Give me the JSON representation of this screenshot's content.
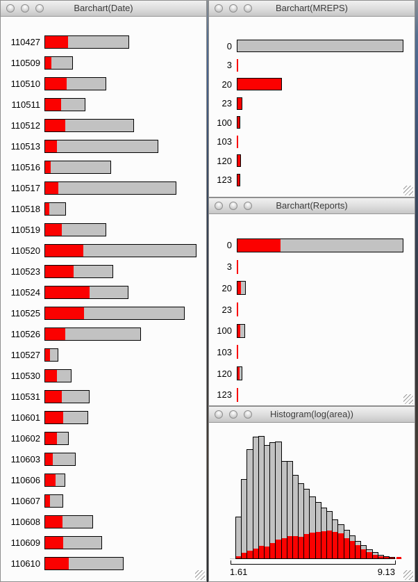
{
  "colors": {
    "selected_red": "#fb0100",
    "bar_gray": "#c2c2c2",
    "bar_border": "#000000"
  },
  "windows": [
    {
      "id": "date",
      "title": "Barchart(Date)"
    },
    {
      "id": "mreps",
      "title": "Barchart(MREPS)"
    },
    {
      "id": "reports",
      "title": "Barchart(Reports)"
    },
    {
      "id": "hist",
      "title": "Histogram(log(area))",
      "axis": {
        "min_label": "1.61",
        "max_label": "9.13"
      }
    }
  ],
  "chart_data": [
    {
      "type": "bar",
      "window": "date",
      "title": "Barchart(Date)",
      "orientation": "horizontal",
      "unit": "screen px (bar length ~ count)",
      "categories": [
        "110427",
        "110509",
        "110510",
        "110511",
        "110512",
        "110513",
        "110516",
        "110517",
        "110518",
        "110519",
        "110520",
        "110523",
        "110524",
        "110525",
        "110526",
        "110527",
        "110530",
        "110531",
        "110601",
        "110602",
        "110603",
        "110606",
        "110607",
        "110608",
        "110609",
        "110610"
      ],
      "series": [
        {
          "name": "total",
          "values": [
            122,
            41,
            89,
            59,
            129,
            164,
            96,
            190,
            31,
            89,
            219,
            99,
            121,
            202,
            139,
            20,
            39,
            65,
            63,
            35,
            45,
            30,
            27,
            70,
            83,
            114
          ]
        },
        {
          "name": "selected",
          "values": [
            33,
            9,
            31,
            23,
            29,
            17,
            8,
            19,
            6,
            24,
            55,
            41,
            64,
            56,
            29,
            7,
            17,
            24,
            26,
            17,
            11,
            15,
            7,
            25,
            26,
            34
          ]
        }
      ]
    },
    {
      "type": "bar",
      "window": "mreps",
      "title": "Barchart(MREPS)",
      "orientation": "horizontal",
      "unit": "screen px (bar length ~ count)",
      "categories": [
        "0",
        "3",
        "20",
        "23",
        "100",
        "103",
        "120",
        "123"
      ],
      "series": [
        {
          "name": "total",
          "values": [
            240,
            2,
            65,
            8,
            5,
            2,
            6,
            5
          ]
        },
        {
          "name": "selected",
          "values": [
            0,
            2,
            65,
            8,
            5,
            2,
            6,
            5
          ]
        }
      ],
      "bordered": [
        true,
        false,
        true,
        true,
        true,
        false,
        true,
        true
      ]
    },
    {
      "type": "bar",
      "window": "reports",
      "title": "Barchart(Reports)",
      "orientation": "horizontal",
      "unit": "screen px (bar length ~ count)",
      "categories": [
        "0",
        "3",
        "20",
        "23",
        "100",
        "103",
        "120",
        "123"
      ],
      "series": [
        {
          "name": "total",
          "values": [
            240,
            2,
            13,
            2,
            12,
            2,
            8,
            2
          ]
        },
        {
          "name": "selected",
          "values": [
            62,
            2,
            5,
            2,
            4,
            2,
            3,
            2
          ]
        }
      ],
      "bordered": [
        true,
        false,
        true,
        false,
        true,
        false,
        true,
        false
      ]
    },
    {
      "type": "bar",
      "window": "hist",
      "subtype": "histogram",
      "title": "Histogram(log(area))",
      "xlabel": "log(area)",
      "x_min": 1.61,
      "x_max": 9.13,
      "unit": "screen px (bar height ~ count)",
      "series": [
        {
          "name": "total",
          "values": [
            59,
            113,
            156,
            174,
            175,
            162,
            166,
            167,
            139,
            139,
            119,
            107,
            99,
            88,
            80,
            72,
            67,
            55,
            48,
            40,
            32,
            24,
            18,
            12,
            8,
            4,
            2,
            1
          ]
        },
        {
          "name": "selected",
          "values": [
            3,
            8,
            11,
            14,
            18,
            17,
            22,
            27,
            29,
            32,
            32,
            31,
            35,
            37,
            38,
            39,
            40,
            38,
            36,
            29,
            25,
            19,
            13,
            9,
            5,
            3,
            2,
            1
          ]
        }
      ],
      "selected_overflow_right": true
    }
  ]
}
